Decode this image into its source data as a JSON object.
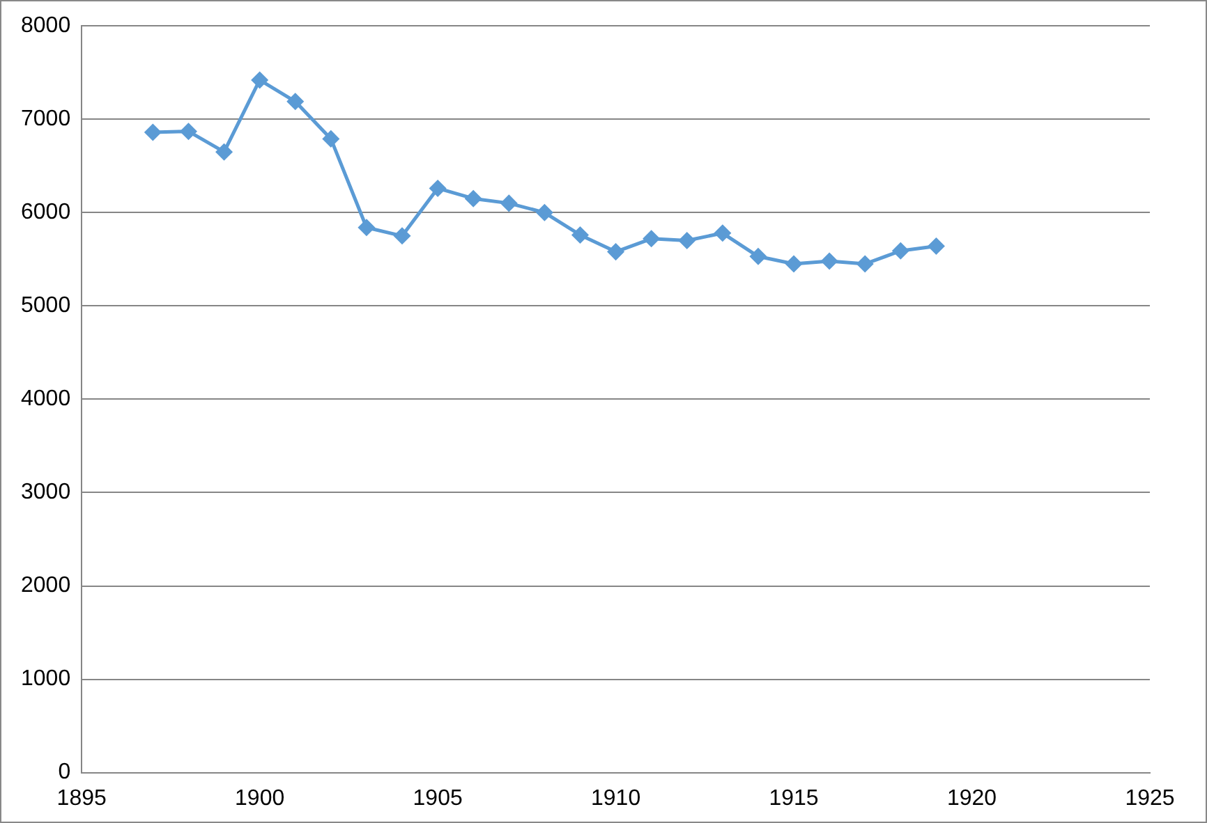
{
  "chart_data": {
    "type": "line",
    "x": [
      1897,
      1898,
      1899,
      1900,
      1901,
      1902,
      1903,
      1904,
      1905,
      1906,
      1907,
      1908,
      1909,
      1910,
      1911,
      1912,
      1913,
      1914,
      1915,
      1916,
      1917,
      1918,
      1919
    ],
    "series": [
      {
        "color": "#5b9bd5",
        "values": [
          6860,
          6870,
          6650,
          7420,
          7190,
          6790,
          5840,
          5750,
          6260,
          6150,
          6100,
          6000,
          5760,
          5580,
          5720,
          5700,
          5780,
          5530,
          5450,
          5480,
          5450,
          5590,
          5640
        ]
      }
    ],
    "xlim": [
      1895,
      1925
    ],
    "xticks": [
      1895,
      1900,
      1905,
      1910,
      1915,
      1920,
      1925
    ],
    "ylim": [
      0,
      8000
    ],
    "yticks": [
      0,
      1000,
      2000,
      3000,
      4000,
      5000,
      6000,
      7000,
      8000
    ],
    "grid": "y",
    "legend": false,
    "marker": "diamond",
    "line_style": "solid"
  }
}
